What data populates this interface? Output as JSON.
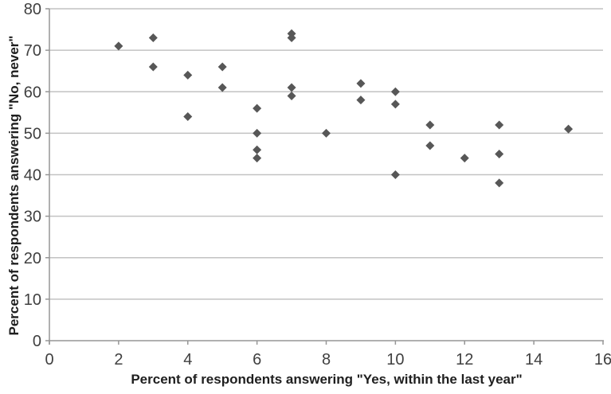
{
  "chart_data": {
    "type": "scatter",
    "title": "",
    "xlabel": "Percent of respondents answering \"Yes, within the last year\"",
    "ylabel": "Percent of respondents  answering \"No, never\"",
    "xlim": [
      0,
      16
    ],
    "ylim": [
      0,
      80
    ],
    "xticks": [
      0,
      2,
      4,
      6,
      8,
      10,
      12,
      14,
      16
    ],
    "yticks": [
      0,
      10,
      20,
      30,
      40,
      50,
      60,
      70,
      80
    ],
    "grid": "horizontal-only",
    "legend_position": "none",
    "marker_shape": "diamond",
    "marker_color": "#575757",
    "gridline_color": "#c2c2c2",
    "axis_color": "#969696",
    "tick_label_color": "#404040",
    "title_color": "#1f1f1f",
    "background_color": "#ffffff",
    "points": [
      [
        2,
        71
      ],
      [
        3,
        73
      ],
      [
        3,
        66
      ],
      [
        4,
        64
      ],
      [
        4,
        54
      ],
      [
        5,
        66
      ],
      [
        5,
        61
      ],
      [
        6,
        56
      ],
      [
        6,
        50
      ],
      [
        6,
        46
      ],
      [
        6,
        44
      ],
      [
        7,
        74
      ],
      [
        7,
        73
      ],
      [
        7,
        61
      ],
      [
        7,
        59
      ],
      [
        8,
        50
      ],
      [
        9,
        62
      ],
      [
        9,
        58
      ],
      [
        10,
        60
      ],
      [
        10,
        57
      ],
      [
        10,
        40
      ],
      [
        11,
        52
      ],
      [
        11,
        47
      ],
      [
        12,
        44
      ],
      [
        13,
        52
      ],
      [
        13,
        45
      ],
      [
        13,
        38
      ],
      [
        15,
        51
      ]
    ]
  }
}
